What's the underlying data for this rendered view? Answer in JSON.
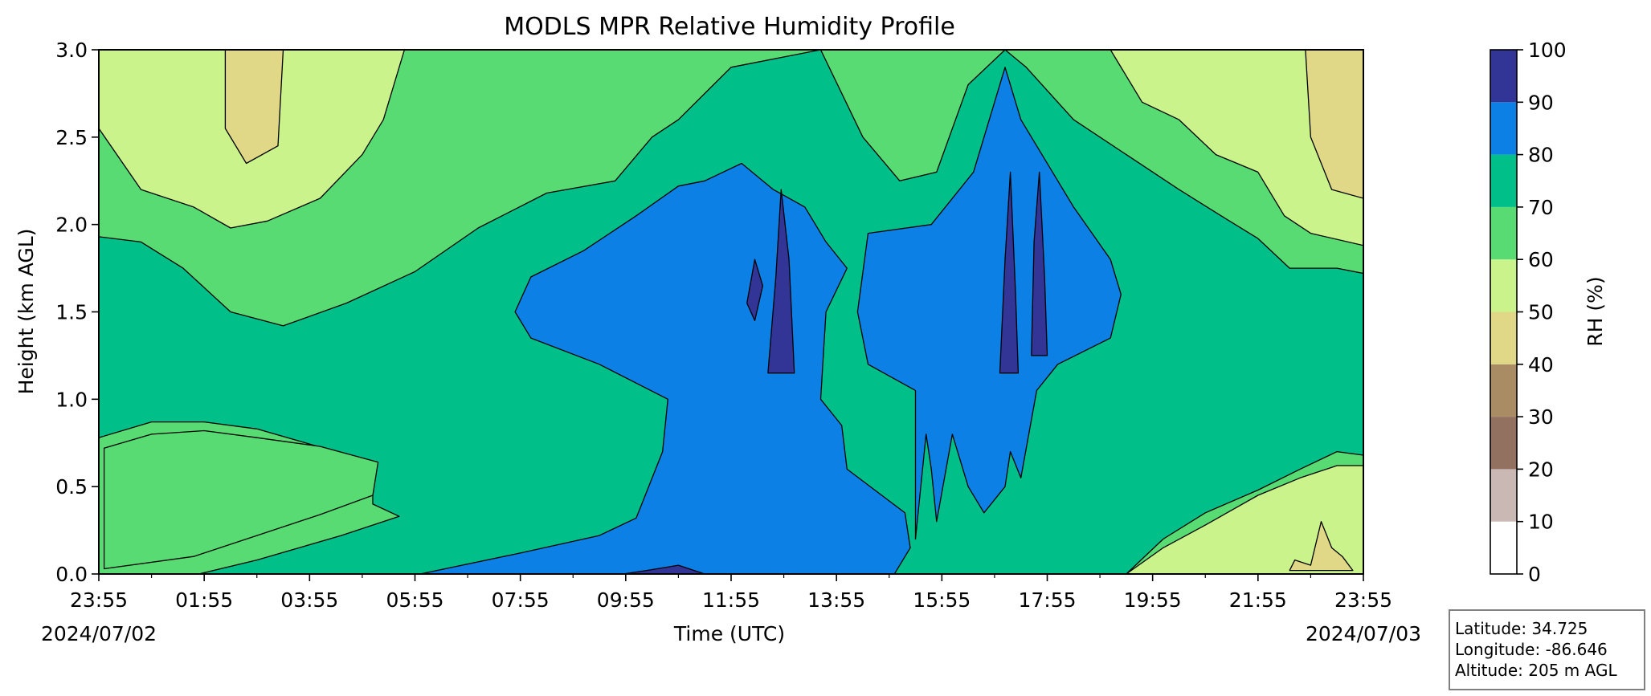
{
  "chart_data": {
    "type": "contourf",
    "title": "MODLS MPR Relative Humidity Profile",
    "xlabel": "Time (UTC)",
    "ylabel": "Height (km AGL)",
    "x_ticks": [
      "23:55",
      "01:55",
      "03:55",
      "05:55",
      "07:55",
      "09:55",
      "11:55",
      "13:55",
      "15:55",
      "17:55",
      "19:55",
      "21:55",
      "23:55"
    ],
    "x_range_hours": [
      0,
      24
    ],
    "start_date": "2024/07/02",
    "end_date": "2024/07/03",
    "y_ticks": [
      "0.0",
      "0.5",
      "1.0",
      "1.5",
      "2.0",
      "2.5",
      "3.0"
    ],
    "ylim": [
      0,
      3
    ],
    "colorbar": {
      "label": "RH (%)",
      "levels": [
        0,
        10,
        20,
        30,
        40,
        50,
        60,
        70,
        80,
        90,
        100
      ],
      "colors": [
        "#ffffff",
        "#c9b8b3",
        "#937161",
        "#a98c63",
        "#e0d787",
        "#caf38c",
        "#57db72",
        "#00bf88",
        "#0d80e6",
        "#323596"
      ]
    },
    "regions": [
      {
        "rh_band": "60-70",
        "polygon": [
          [
            0,
            0
          ],
          [
            24,
            0
          ],
          [
            24,
            3
          ],
          [
            0,
            3
          ]
        ]
      },
      {
        "rh_band": "70-80",
        "polygon": [
          [
            0,
            0
          ],
          [
            1.9,
            0
          ],
          [
            3,
            0.08
          ],
          [
            4.6,
            0.22
          ],
          [
            5.7,
            0.33
          ],
          [
            5.2,
            0.4
          ],
          [
            5.2,
            0.62
          ],
          [
            4.5,
            0.7
          ],
          [
            3,
            0.83
          ],
          [
            2,
            0.87
          ],
          [
            1,
            0.87
          ],
          [
            0,
            0.78
          ],
          [
            0,
            1.93
          ],
          [
            0.8,
            1.9
          ],
          [
            1.6,
            1.75
          ],
          [
            2.5,
            1.5
          ],
          [
            3.5,
            1.42
          ],
          [
            4.7,
            1.55
          ],
          [
            6,
            1.73
          ],
          [
            7.2,
            1.98
          ],
          [
            8.5,
            2.18
          ],
          [
            9.8,
            2.25
          ],
          [
            10.5,
            2.5
          ],
          [
            11,
            2.6
          ],
          [
            12,
            2.9
          ],
          [
            13.7,
            3
          ],
          [
            14.5,
            2.5
          ],
          [
            15.2,
            2.25
          ],
          [
            15.9,
            2.3
          ],
          [
            16.5,
            2.8
          ],
          [
            17.2,
            3
          ],
          [
            17.6,
            2.9
          ],
          [
            18.5,
            2.6
          ],
          [
            19.5,
            2.4
          ],
          [
            20.5,
            2.2
          ],
          [
            21.3,
            2.05
          ],
          [
            22,
            1.92
          ],
          [
            22.6,
            1.75
          ],
          [
            23.5,
            1.75
          ],
          [
            24,
            1.72
          ],
          [
            24,
            0.68
          ],
          [
            23.5,
            0.7
          ],
          [
            22.8,
            0.6
          ],
          [
            22,
            0.48
          ],
          [
            21,
            0.35
          ],
          [
            20.2,
            0.2
          ],
          [
            19.5,
            0
          ]
        ]
      },
      {
        "rh_band": "60-70",
        "polygon": [
          [
            0.1,
            0.03
          ],
          [
            1.8,
            0.1
          ],
          [
            3,
            0.22
          ],
          [
            4.2,
            0.34
          ],
          [
            5.2,
            0.45
          ],
          [
            5.3,
            0.64
          ],
          [
            4.2,
            0.73
          ],
          [
            3,
            0.78
          ],
          [
            2,
            0.82
          ],
          [
            1,
            0.8
          ],
          [
            0.1,
            0.72
          ]
        ]
      },
      {
        "rh_band": "80-90",
        "polygon": [
          [
            6.1,
            0
          ],
          [
            8,
            0.12
          ],
          [
            9.5,
            0.22
          ],
          [
            10.2,
            0.32
          ],
          [
            10.7,
            0.7
          ],
          [
            10.8,
            1.0
          ],
          [
            9.5,
            1.2
          ],
          [
            8.2,
            1.35
          ],
          [
            7.9,
            1.5
          ],
          [
            8.2,
            1.7
          ],
          [
            9.2,
            1.85
          ],
          [
            10.2,
            2.05
          ],
          [
            11,
            2.22
          ],
          [
            11.5,
            2.25
          ],
          [
            12.2,
            2.35
          ],
          [
            12.8,
            2.2
          ],
          [
            13.4,
            2.1
          ],
          [
            13.8,
            1.9
          ],
          [
            14.2,
            1.75
          ],
          [
            13.8,
            1.5
          ],
          [
            13.7,
            1.0
          ],
          [
            14.1,
            0.85
          ],
          [
            14.2,
            0.6
          ],
          [
            15.3,
            0.35
          ],
          [
            15.4,
            0.15
          ],
          [
            15.1,
            0
          ]
        ]
      },
      {
        "rh_band": "80-90",
        "polygon": [
          [
            14.6,
            1.95
          ],
          [
            15.8,
            2.0
          ],
          [
            16.6,
            2.3
          ],
          [
            17.2,
            2.9
          ],
          [
            17.5,
            2.6
          ],
          [
            18.5,
            2.1
          ],
          [
            19.2,
            1.8
          ],
          [
            19.4,
            1.6
          ],
          [
            19.2,
            1.35
          ],
          [
            18.2,
            1.2
          ],
          [
            17.8,
            1.05
          ],
          [
            17.5,
            0.55
          ],
          [
            17.3,
            0.7
          ],
          [
            17.2,
            0.5
          ],
          [
            16.8,
            0.35
          ],
          [
            16.5,
            0.5
          ],
          [
            16.2,
            0.8
          ],
          [
            15.9,
            0.3
          ],
          [
            15.8,
            0.6
          ],
          [
            15.7,
            0.8
          ],
          [
            15.5,
            0.2
          ],
          [
            15.5,
            1.05
          ],
          [
            14.6,
            1.2
          ],
          [
            14.4,
            1.5
          ]
        ]
      },
      {
        "rh_band": "90-100",
        "polygon": [
          [
            12.7,
            1.15
          ],
          [
            12.85,
            1.7
          ],
          [
            12.95,
            2.2
          ],
          [
            13.1,
            1.8
          ],
          [
            13.2,
            1.15
          ]
        ]
      },
      {
        "rh_band": "90-100",
        "polygon": [
          [
            12.3,
            1.55
          ],
          [
            12.45,
            1.8
          ],
          [
            12.6,
            1.65
          ],
          [
            12.45,
            1.45
          ]
        ]
      },
      {
        "rh_band": "90-100",
        "polygon": [
          [
            17.1,
            1.15
          ],
          [
            17.2,
            1.8
          ],
          [
            17.3,
            2.3
          ],
          [
            17.4,
            1.6
          ],
          [
            17.45,
            1.15
          ]
        ]
      },
      {
        "rh_band": "90-100",
        "polygon": [
          [
            17.7,
            1.25
          ],
          [
            17.75,
            1.9
          ],
          [
            17.85,
            2.3
          ],
          [
            17.95,
            1.7
          ],
          [
            18.0,
            1.25
          ]
        ]
      },
      {
        "rh_band": "90-100",
        "polygon": [
          [
            9.95,
            0
          ],
          [
            10.4,
            0.02
          ],
          [
            11,
            0.05
          ],
          [
            11.5,
            0
          ],
          [
            9.5,
            0
          ]
        ]
      },
      {
        "rh_band": "50-60",
        "polygon": [
          [
            0,
            2.55
          ],
          [
            0.8,
            2.2
          ],
          [
            1.8,
            2.1
          ],
          [
            2.5,
            1.98
          ],
          [
            3.2,
            2.02
          ],
          [
            4.2,
            2.15
          ],
          [
            5,
            2.4
          ],
          [
            5.4,
            2.6
          ],
          [
            5.8,
            3
          ],
          [
            0,
            3
          ]
        ]
      },
      {
        "rh_band": "40-50",
        "polygon": [
          [
            2.4,
            2.55
          ],
          [
            2.8,
            2.35
          ],
          [
            3.4,
            2.45
          ],
          [
            3.5,
            3
          ],
          [
            2.4,
            3
          ]
        ]
      },
      {
        "rh_band": "50-60",
        "polygon": [
          [
            19.2,
            3
          ],
          [
            19.8,
            2.7
          ],
          [
            20.5,
            2.6
          ],
          [
            21.2,
            2.4
          ],
          [
            22,
            2.3
          ],
          [
            22.5,
            2.05
          ],
          [
            23,
            1.95
          ],
          [
            24,
            1.88
          ],
          [
            24,
            3
          ]
        ]
      },
      {
        "rh_band": "40-50",
        "polygon": [
          [
            22.9,
            3
          ],
          [
            23,
            2.5
          ],
          [
            23.4,
            2.2
          ],
          [
            24,
            2.15
          ],
          [
            24,
            3
          ]
        ]
      },
      {
        "rh_band": "50-60",
        "polygon": [
          [
            19.5,
            0
          ],
          [
            20.2,
            0.15
          ],
          [
            21,
            0.28
          ],
          [
            22,
            0.45
          ],
          [
            22.8,
            0.55
          ],
          [
            23.5,
            0.62
          ],
          [
            24,
            0.62
          ],
          [
            24,
            0
          ]
        ]
      },
      {
        "rh_band": "40-50",
        "polygon": [
          [
            22.6,
            0.02
          ],
          [
            22.7,
            0.08
          ],
          [
            23.0,
            0.05
          ],
          [
            23.2,
            0.3
          ],
          [
            23.4,
            0.15
          ],
          [
            23.6,
            0.1
          ],
          [
            23.8,
            0.02
          ]
        ]
      }
    ],
    "info": {
      "latitude": "Latitude: 34.725",
      "longitude": "Longitude: -86.646",
      "altitude": "Altitude: 205 m AGL"
    }
  }
}
